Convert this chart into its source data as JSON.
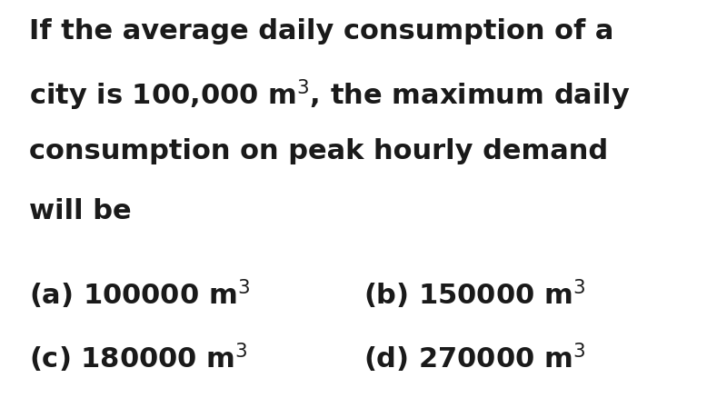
{
  "background_color": "#ffffff",
  "text_color": "#1a1a1a",
  "fig_width": 8.0,
  "fig_height": 4.39,
  "dpi": 100,
  "line1": "If the average daily consumption of a",
  "line2": "city is 100,000 m$^{3}$, the maximum daily",
  "line3": "consumption on peak hourly demand",
  "line4": "will be",
  "opt_a": "(a) 100000 m$^{3}$",
  "opt_b": "(b) 150000 m$^{3}$",
  "opt_c": "(c) 180000 m$^{3}$",
  "opt_d": "(d) 270000 m$^{3}$",
  "question_fontsize": 22,
  "option_fontsize": 22,
  "font_weight": "bold"
}
